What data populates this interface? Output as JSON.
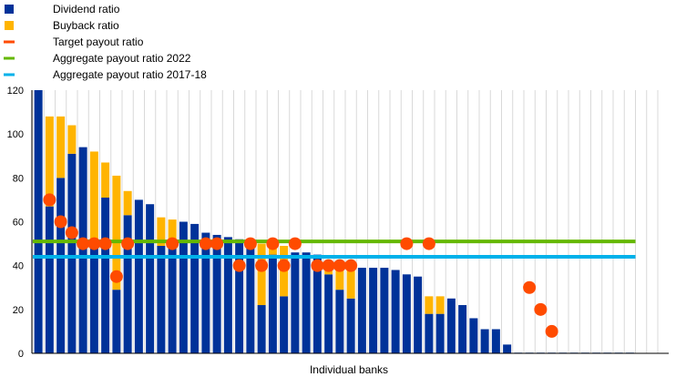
{
  "chart_data": {
    "type": "bar",
    "stacked": true,
    "xlabel": "Individual banks",
    "ylabel": "",
    "ylim": [
      0,
      120
    ],
    "yticks": [
      0,
      20,
      40,
      60,
      80,
      100,
      120
    ],
    "grid": "vertical gridlines between banks",
    "legend": {
      "placement": "top-left",
      "entries": [
        {
          "name": "Dividend ratio",
          "color": "#003299",
          "marker": "square"
        },
        {
          "name": "Buyback ratio",
          "color": "#FFB400",
          "marker": "square"
        },
        {
          "name": "Target payout ratio",
          "color": "#FF4B00",
          "marker": "line"
        },
        {
          "name": "Aggregate payout ratio 2022",
          "color": "#65B800",
          "marker": "line"
        },
        {
          "name": "Aggregate payout ratio 2017-18",
          "color": "#00B1EA",
          "marker": "line"
        }
      ]
    },
    "bank_count": 54,
    "dividend": [
      120,
      67,
      80,
      91,
      94,
      50,
      71,
      29,
      63,
      70,
      68,
      49,
      50,
      60,
      59,
      55,
      54,
      53,
      52,
      51,
      22,
      45,
      26,
      46,
      46,
      45,
      36,
      29,
      25,
      39,
      39,
      39,
      38,
      36,
      35,
      18,
      18,
      25,
      22,
      16,
      11,
      11,
      4,
      0.3,
      0.3,
      0.3,
      0.3,
      0.3,
      0.3,
      0.3,
      0.3,
      0.3,
      0.3,
      0.3
    ],
    "buyback": [
      0,
      41,
      28,
      13,
      0,
      42,
      16,
      52,
      11,
      0,
      0,
      13,
      11,
      0,
      0,
      0,
      0,
      0,
      0,
      0,
      28,
      6,
      23,
      0,
      0,
      0,
      5,
      10,
      15,
      0,
      0,
      0,
      0,
      0,
      0,
      8,
      8,
      0,
      0,
      0,
      0,
      0,
      0,
      0,
      0,
      0,
      0,
      0,
      0,
      0,
      0,
      0,
      0,
      0
    ],
    "target": [
      null,
      70,
      60,
      55,
      50,
      50,
      50,
      35,
      50,
      null,
      null,
      null,
      50,
      null,
      null,
      50,
      50,
      null,
      40,
      50,
      40,
      50,
      40,
      50,
      null,
      40,
      40,
      40,
      40,
      null,
      null,
      null,
      null,
      50,
      null,
      50,
      null,
      null,
      null,
      null,
      null,
      null,
      null,
      null,
      30,
      20,
      10,
      null,
      null,
      null,
      null,
      null,
      null,
      null
    ],
    "aggregate_2022": 51,
    "aggregate_2017_18": 44,
    "colors": {
      "dividend": "#003299",
      "buyback": "#FFB400",
      "target": "#FF4B00",
      "aggregate_2022": "#65B800",
      "aggregate_2017_18": "#00B1EA",
      "grid": "#D9D9D9"
    }
  }
}
